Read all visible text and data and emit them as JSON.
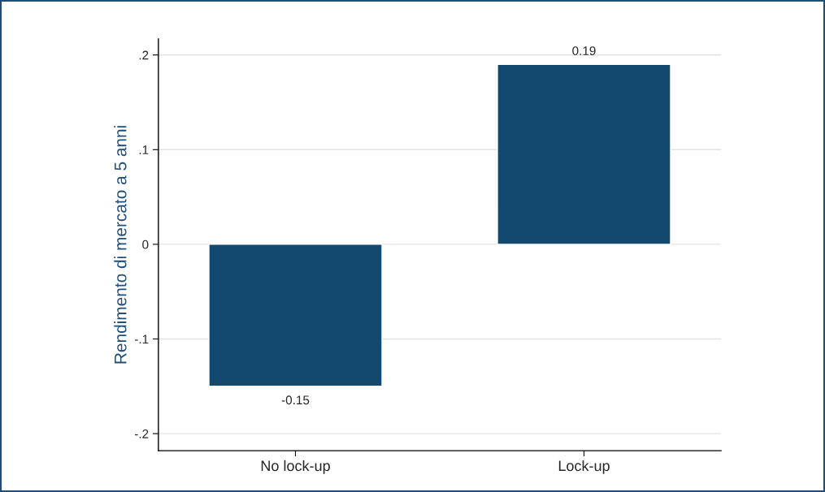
{
  "chart_data": {
    "type": "bar",
    "ylabel": "Rendimento di mercato a 5 anni",
    "categories": [
      "No lock-up",
      "Lock-up"
    ],
    "values": [
      -0.15,
      0.19
    ],
    "color": "#13486f",
    "ylim": [
      -0.218,
      0.217
    ],
    "yticks": [
      {
        "value": -0.2,
        "label": "-.2"
      },
      {
        "value": -0.1,
        "label": "-.1"
      },
      0,
      {
        "value": 0.1,
        "label": ".1"
      },
      {
        "value": 0.2,
        "label": ".2"
      }
    ],
    "grid": "y",
    "data_labels": true
  }
}
